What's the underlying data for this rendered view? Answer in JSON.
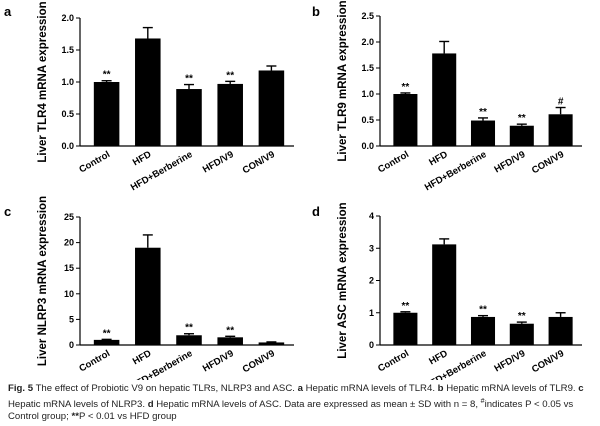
{
  "chart_data": [
    {
      "type": "bar",
      "panel": "a",
      "ylabel": "Liver TLR4 mRNA expression",
      "categories": [
        "Control",
        "HFD",
        "HFD+Berberine",
        "HFD/V9",
        "CON/V9"
      ],
      "values": [
        1.0,
        1.68,
        0.89,
        0.97,
        1.18
      ],
      "errors": [
        0.02,
        0.17,
        0.07,
        0.04,
        0.07
      ],
      "annotations": [
        "**",
        "",
        "**",
        "**",
        ""
      ],
      "ylim": [
        0,
        2.0
      ],
      "yticks": [
        "0.0",
        "0.5",
        "1.0",
        "1.5",
        "2.0"
      ],
      "grid": false
    },
    {
      "type": "bar",
      "panel": "b",
      "ylabel": "Liver TLR9 mRNA expression",
      "categories": [
        "Control",
        "HFD",
        "HFD+Berberine",
        "HFD/V9",
        "CON/V9"
      ],
      "values": [
        1.0,
        1.78,
        0.49,
        0.39,
        0.61
      ],
      "errors": [
        0.02,
        0.23,
        0.05,
        0.03,
        0.13
      ],
      "annotations": [
        "**",
        "",
        "**",
        "**",
        "#"
      ],
      "ylim": [
        0,
        2.5
      ],
      "yticks": [
        "0.0",
        "0.5",
        "1.0",
        "1.5",
        "2.0",
        "2.5"
      ],
      "grid": false
    },
    {
      "type": "bar",
      "panel": "c",
      "ylabel": "Liver NLRP3 mRNA expression",
      "categories": [
        "Control",
        "HFD",
        "HFD+Berberine",
        "HFD/V9",
        "CON/V9"
      ],
      "values": [
        1.0,
        19.0,
        1.9,
        1.5,
        0.5
      ],
      "errors": [
        0.1,
        2.5,
        0.3,
        0.2,
        0.1
      ],
      "annotations": [
        "**",
        "",
        "**",
        "**",
        ""
      ],
      "ylim": [
        0,
        25
      ],
      "yticks": [
        "0",
        "5",
        "10",
        "15",
        "20",
        "25"
      ],
      "grid": false
    },
    {
      "type": "bar",
      "panel": "d",
      "ylabel": "Liver ASC mRNA expression",
      "categories": [
        "Control",
        "HFD",
        "HFD+Berberine",
        "HFD/V9",
        "CON/V9"
      ],
      "values": [
        1.0,
        3.12,
        0.87,
        0.66,
        0.87
      ],
      "errors": [
        0.03,
        0.17,
        0.04,
        0.05,
        0.13
      ],
      "annotations": [
        "**",
        "",
        "**",
        "**",
        ""
      ],
      "ylim": [
        0,
        4
      ],
      "yticks": [
        "0",
        "1",
        "2",
        "3",
        "4"
      ],
      "grid": false
    }
  ],
  "style": {
    "bar_color": "#000000",
    "background": "#ffffff"
  },
  "caption": {
    "fig_label": "Fig. 5",
    "segments": [
      {
        "text": "The effect of Probiotic V9 on hepatic TLRs, NLRP3 and ASC. ",
        "bold": false
      },
      {
        "text": "a",
        "bold": true
      },
      {
        "text": " Hepatic mRNA levels of TLR4. ",
        "bold": false
      },
      {
        "text": "b",
        "bold": true
      },
      {
        "text": " Hepatic mRNA levels of TLR9. ",
        "bold": false
      },
      {
        "text": "c",
        "bold": true
      },
      {
        "text": " Hepatic mRNA levels of NLRP3. ",
        "bold": false
      },
      {
        "text": "d",
        "bold": true
      },
      {
        "text": " Hepatic mRNA levels of ASC. Data are expressed as mean ± SD with n = 8, ",
        "bold": false
      },
      {
        "text": "#",
        "bold": false
      },
      {
        "text": "indicates P < 0.05 vs Control group; ",
        "bold": false
      },
      {
        "text": "**",
        "bold": true
      },
      {
        "text": "P < 0.01 vs HFD group",
        "bold": false
      }
    ]
  }
}
